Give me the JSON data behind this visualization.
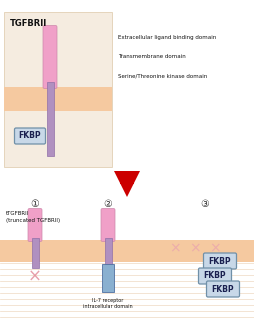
{
  "title_top": "TGFBRII",
  "legend_labels": [
    "Extracellular ligand binding domain",
    "Transmembrane domain",
    "Serine/Threonine kinase domain"
  ],
  "bottom_label1": "tTGFBRII\n(truncated TGFBRII)",
  "bottom_label2": "IL-7 receptor\nintracellular domain",
  "circle_labels": [
    "①",
    "②",
    "③"
  ],
  "fkbp_label": "FKBP",
  "bg_color": "#ffffff",
  "membrane_color": "#f5c9a0",
  "extracell_pink": "#f0a0c8",
  "extracell_purple": "#c8a0d8",
  "transmem_color": "#b090c0",
  "il7_color": "#8ab0d0",
  "fkbp_bg": "#c8d8e8",
  "fkbp_border": "#7090a8",
  "cross_color": "#e08090",
  "arrow_color": "#cc0000",
  "text_color": "#111111",
  "stripe_color": "#e8c8a8"
}
